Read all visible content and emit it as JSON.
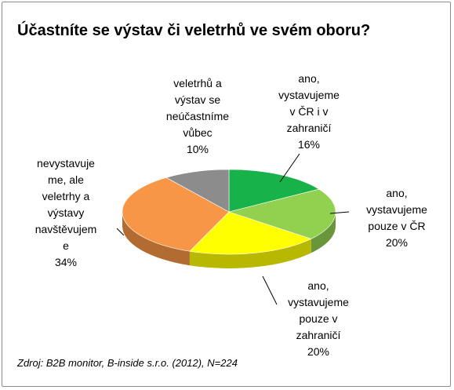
{
  "chart_data": {
    "type": "pie",
    "title": "Účastníte se výstav či veletrhů ve svém oboru?",
    "source": "Zdroj: B2B monitor, B-inside s.r.o. (2012), N=224",
    "slices": [
      {
        "label_lines": [
          "ano,",
          "vystavujeme",
          "v ČR i v",
          "zahraničí"
        ],
        "value": 16,
        "value_label": "16%",
        "color": "#17b34a"
      },
      {
        "label_lines": [
          "ano,",
          "vystavujeme",
          "pouze v ČR"
        ],
        "value": 20,
        "value_label": "20%",
        "color": "#92d050"
      },
      {
        "label_lines": [
          "ano,",
          "vystavujeme",
          "pouze v",
          "zahraničí"
        ],
        "value": 20,
        "value_label": "20%",
        "color": "#ffff00"
      },
      {
        "label_lines": [
          "nevystavuje",
          "me, ale",
          "veletrhy a",
          "výstavy",
          "navštěvujem",
          "e"
        ],
        "value": 34,
        "value_label": "34%",
        "color": "#f79646"
      },
      {
        "label_lines": [
          "veletrhů a",
          "výstav se",
          "neúčastníme",
          "vůbec"
        ],
        "value": 10,
        "value_label": "10%",
        "color": "#8c8c8c"
      }
    ]
  }
}
